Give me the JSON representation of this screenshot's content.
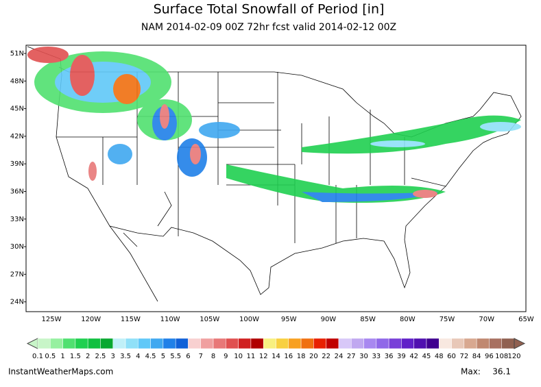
{
  "header": {
    "title": "Surface Total Snowfall of Period [in]",
    "subtitle": "NAM 2014-02-09 00Z 72hr fcst valid 2014-02-12 00Z"
  },
  "latitude_labels": [
    "51N",
    "48N",
    "45N",
    "42N",
    "39N",
    "36N",
    "33N",
    "30N",
    "27N",
    "24N"
  ],
  "longitude_labels": [
    "125W",
    "120W",
    "115W",
    "110W",
    "105W",
    "100W",
    "95W",
    "90W",
    "85W",
    "80W",
    "75W",
    "70W",
    "65W"
  ],
  "colorbar": {
    "labels": [
      "0.1",
      "0.5",
      "1",
      "1.5",
      "2",
      "2.5",
      "3",
      "3.5",
      "4",
      "4.5",
      "5",
      "5.5",
      "6",
      "7",
      "8",
      "9",
      "10",
      "11",
      "12",
      "14",
      "16",
      "18",
      "20",
      "22",
      "24",
      "27",
      "30",
      "33",
      "36",
      "39",
      "42",
      "45",
      "48",
      "60",
      "72",
      "84",
      "96",
      "108",
      "120"
    ],
    "colors": [
      "#c8f5c8",
      "#96f0a0",
      "#50e070",
      "#20d050",
      "#10c040",
      "#08a830",
      "#c0f0f8",
      "#90e0f8",
      "#60c8f8",
      "#40a8f0",
      "#2080e8",
      "#1060d8",
      "#f8d0d0",
      "#f0a0a0",
      "#e87878",
      "#e05050",
      "#d02020",
      "#b00000",
      "#f8f080",
      "#f8d040",
      "#f8a020",
      "#f07010",
      "#e82000",
      "#c00000",
      "#d8c8f8",
      "#c0a8f0",
      "#a888f0",
      "#9068e8",
      "#7840d8",
      "#6020c8",
      "#5010b0",
      "#400090",
      "#f8e8e0",
      "#e8c8b8",
      "#d8a890",
      "#c08870",
      "#a87060",
      "#906050"
    ]
  },
  "footer": {
    "source": "InstantWeatherMaps.com",
    "max_label": "Max:",
    "max_value": 36.1
  }
}
